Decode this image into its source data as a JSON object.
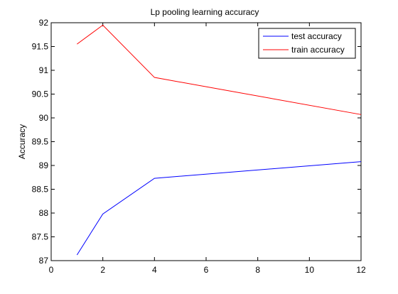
{
  "chart_data": {
    "type": "line",
    "title": "Lp pooling learning accuracy",
    "xlabel": "",
    "ylabel": "Accuracy",
    "xlim": [
      0,
      12
    ],
    "ylim": [
      87,
      92
    ],
    "xticks": [
      0,
      2,
      4,
      6,
      8,
      10,
      12
    ],
    "yticks": [
      87,
      87.5,
      88,
      88.5,
      89,
      89.5,
      90,
      90.5,
      91,
      91.5,
      92
    ],
    "x": [
      1,
      2,
      4,
      12
    ],
    "grid": false,
    "legend_position": "top-right",
    "series": [
      {
        "name": "test accuracy",
        "color": "#0000ff",
        "values": [
          87.12,
          87.98,
          88.73,
          89.08
        ]
      },
      {
        "name": "train accuracy",
        "color": "#ff0000",
        "values": [
          91.55,
          91.95,
          90.85,
          90.07
        ]
      }
    ]
  }
}
